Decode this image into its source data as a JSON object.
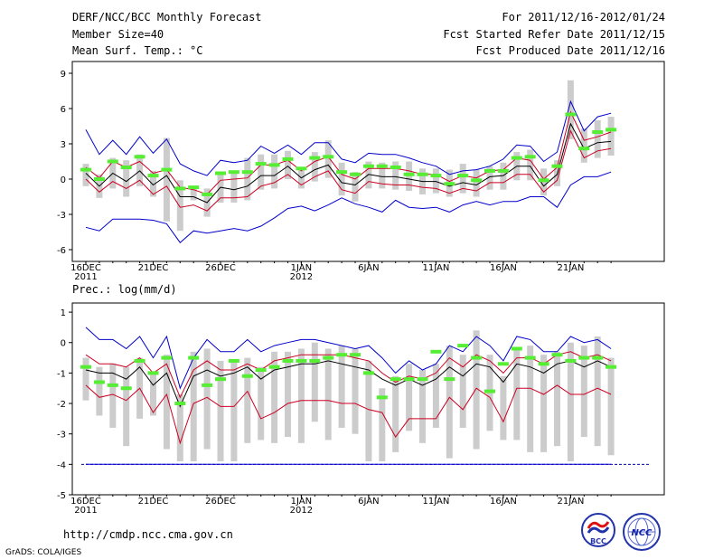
{
  "header": {
    "title": "DERF/NCC/BCC Monthly Forecast",
    "member_size": "Member Size=40",
    "variable": "Mean Surf. Temp.: °C",
    "period": "For 2011/12/16-2012/01/24",
    "started": "Fcst Started Refer Date 2011/12/15",
    "produced": "Fcst Produced Date 2011/12/16"
  },
  "footer": {
    "url": "http://cmdp.ncc.cma.gov.cn",
    "credit": "GrADS: COLA/IGES",
    "logo_bcc": "BCC",
    "logo_ncc": "NCC"
  },
  "colors": {
    "envelope": "#0000cc",
    "spread": "#cc0022",
    "mean": "#000000",
    "box": "#cccccc",
    "obs": "#55ee33",
    "ref": "#0000aa"
  },
  "chart_data": [
    {
      "type": "line",
      "title": "Mean Surf. Temp.: °C",
      "xlabel": "",
      "ylabel": "",
      "ylim": [
        -7,
        10
      ],
      "yticks": [
        -6,
        -3,
        0,
        3,
        6,
        9
      ],
      "xticks": [
        {
          "day": 0,
          "label": "16DEC",
          "sub": "2011"
        },
        {
          "day": 5,
          "label": "21DEC",
          "sub": ""
        },
        {
          "day": 10,
          "label": "26DEC",
          "sub": ""
        },
        {
          "day": 16,
          "label": "1JAN",
          "sub": "2012"
        },
        {
          "day": 21,
          "label": "6JAN",
          "sub": ""
        },
        {
          "day": 26,
          "label": "11JAN",
          "sub": ""
        },
        {
          "day": 31,
          "label": "16JAN",
          "sub": ""
        },
        {
          "day": 36,
          "label": "21JAN",
          "sub": ""
        }
      ],
      "x": [
        0,
        1,
        2,
        3,
        4,
        5,
        6,
        7,
        8,
        9,
        10,
        11,
        12,
        13,
        14,
        15,
        16,
        17,
        18,
        19,
        20,
        21,
        22,
        23,
        24,
        25,
        26,
        27,
        28,
        29,
        30,
        31,
        32,
        33,
        34,
        35,
        36,
        37,
        38,
        39
      ],
      "series": [
        {
          "name": "max",
          "values": [
            4.2,
            2.1,
            3.3,
            2.1,
            3.6,
            2.2,
            3.4,
            1.3,
            0.7,
            0.3,
            1.6,
            1.4,
            1.6,
            2.8,
            2.2,
            2.9,
            2.1,
            3.1,
            3.1,
            1.7,
            1.4,
            2.2,
            2.1,
            2.1,
            1.8,
            1.4,
            1.1,
            0.4,
            0.7,
            0.8,
            1.1,
            1.7,
            2.9,
            2.8,
            1.5,
            2.3,
            6.6,
            4.1,
            5.3,
            5.6
          ]
        },
        {
          "name": "upper",
          "values": [
            1.0,
            0.1,
            1.5,
            1.0,
            1.5,
            0.5,
            0.8,
            -0.7,
            -0.9,
            -1.3,
            -0.1,
            0.0,
            0.1,
            1.2,
            1.2,
            1.6,
            0.7,
            1.5,
            1.9,
            0.4,
            0.0,
            0.9,
            0.9,
            0.9,
            0.7,
            0.4,
            0.4,
            -0.2,
            0.3,
            0.1,
            0.7,
            0.8,
            1.8,
            1.6,
            0.0,
            1.0,
            5.7,
            3.3,
            3.6,
            4.0
          ]
        },
        {
          "name": "mean",
          "values": [
            0.5,
            -0.6,
            0.5,
            -0.2,
            0.7,
            -0.5,
            0.3,
            -1.5,
            -1.5,
            -2.0,
            -0.7,
            -0.9,
            -0.6,
            0.3,
            0.3,
            1.1,
            0.1,
            0.8,
            1.2,
            -0.3,
            -0.5,
            0.4,
            0.2,
            0.2,
            0.0,
            -0.2,
            -0.2,
            -0.6,
            -0.3,
            -0.5,
            0.2,
            0.3,
            1.1,
            1.1,
            -0.6,
            0.4,
            4.7,
            2.6,
            3.1,
            3.2
          ]
        },
        {
          "name": "lower",
          "values": [
            0.0,
            -1.1,
            -0.2,
            -0.8,
            -0.1,
            -1.3,
            -0.6,
            -2.4,
            -2.2,
            -2.7,
            -1.6,
            -1.6,
            -1.5,
            -0.6,
            -0.3,
            0.4,
            -0.5,
            0.2,
            0.7,
            -0.9,
            -1.2,
            -0.2,
            -0.4,
            -0.5,
            -0.5,
            -0.7,
            -0.8,
            -1.2,
            -0.8,
            -1.0,
            -0.3,
            -0.3,
            0.4,
            0.4,
            -1.1,
            -0.1,
            4.1,
            1.8,
            2.4,
            2.6
          ]
        },
        {
          "name": "min",
          "values": [
            -4.1,
            -4.4,
            -3.4,
            -3.4,
            -3.4,
            -3.5,
            -3.8,
            -5.4,
            -4.4,
            -4.6,
            -4.4,
            -4.2,
            -4.4,
            -4.0,
            -3.3,
            -2.5,
            -2.3,
            -2.7,
            -2.2,
            -1.6,
            -2.1,
            -2.4,
            -2.8,
            -1.8,
            -2.4,
            -2.5,
            -2.4,
            -2.8,
            -2.2,
            -1.9,
            -2.2,
            -1.9,
            -1.9,
            -1.5,
            -1.5,
            -2.4,
            -0.5,
            0.2,
            0.2,
            0.6
          ]
        },
        {
          "name": "box_low",
          "values": [
            -0.6,
            -1.6,
            -0.8,
            -1.5,
            -0.6,
            -1.5,
            -3.6,
            -4.4,
            -1.8,
            -3.2,
            -2.0,
            -2.0,
            -1.8,
            -0.9,
            -0.8,
            0.0,
            -0.8,
            -0.2,
            0.1,
            -1.4,
            -1.9,
            -0.8,
            -0.8,
            -0.9,
            -1.0,
            -1.3,
            -1.2,
            -1.5,
            -1.2,
            -1.5,
            -0.9,
            -0.9,
            -0.1,
            -0.1,
            -1.4,
            -0.6,
            3.4,
            1.4,
            1.8,
            2.0
          ]
        },
        {
          "name": "box_high",
          "values": [
            1.3,
            0.4,
            1.8,
            1.6,
            2.1,
            0.7,
            3.5,
            -0.1,
            -0.6,
            -0.8,
            0.4,
            0.6,
            1.8,
            2.1,
            2.1,
            2.4,
            1.0,
            2.3,
            3.3,
            1.4,
            0.6,
            1.5,
            1.4,
            1.5,
            1.5,
            0.9,
            0.9,
            0.8,
            1.3,
            0.8,
            1.1,
            1.4,
            2.3,
            2.5,
            0.9,
            1.6,
            8.4,
            4.3,
            5.0,
            5.3
          ]
        },
        {
          "name": "observed",
          "values": [
            0.8,
            0.0,
            1.5,
            1.0,
            1.9,
            0.3,
            0.8,
            -0.8,
            -0.7,
            -1.3,
            0.5,
            0.6,
            0.6,
            1.3,
            1.2,
            1.7,
            0.9,
            1.8,
            1.9,
            0.6,
            0.4,
            1.1,
            1.1,
            1.0,
            0.4,
            0.4,
            0.3,
            -0.4,
            0.3,
            -0.1,
            0.7,
            0.7,
            1.8,
            1.9,
            -0.1,
            1.1,
            5.5,
            2.6,
            4.0,
            4.2
          ]
        }
      ]
    },
    {
      "type": "line",
      "title": "Prec.: log(mm/d)",
      "xlabel": "",
      "ylabel": "",
      "ylim": [
        -5,
        1.3
      ],
      "yticks": [
        -5,
        -4,
        -3,
        -2,
        -1,
        0,
        1
      ],
      "xticks": [
        {
          "day": 0,
          "label": "16DEC",
          "sub": "2011"
        },
        {
          "day": 5,
          "label": "21DEC",
          "sub": ""
        },
        {
          "day": 10,
          "label": "26DEC",
          "sub": ""
        },
        {
          "day": 16,
          "label": "1JAN",
          "sub": "2012"
        },
        {
          "day": 21,
          "label": "6JAN",
          "sub": ""
        },
        {
          "day": 26,
          "label": "11JAN",
          "sub": ""
        },
        {
          "day": 31,
          "label": "16JAN",
          "sub": ""
        },
        {
          "day": 36,
          "label": "21JAN",
          "sub": ""
        }
      ],
      "x": [
        0,
        1,
        2,
        3,
        4,
        5,
        6,
        7,
        8,
        9,
        10,
        11,
        12,
        13,
        14,
        15,
        16,
        17,
        18,
        19,
        20,
        21,
        22,
        23,
        24,
        25,
        26,
        27,
        28,
        29,
        30,
        31,
        32,
        33,
        34,
        35,
        36,
        37,
        38,
        39
      ],
      "reference": -4.0,
      "series": [
        {
          "name": "max",
          "values": [
            0.5,
            0.1,
            0.1,
            -0.2,
            0.2,
            -0.5,
            0.2,
            -1.5,
            -0.5,
            0.1,
            -0.3,
            -0.3,
            0.1,
            -0.3,
            -0.1,
            0.0,
            0.1,
            0.1,
            0.0,
            -0.1,
            -0.2,
            -0.1,
            -0.5,
            -1.0,
            -0.6,
            -0.9,
            -0.7,
            -0.1,
            -0.3,
            0.2,
            -0.1,
            -0.6,
            0.2,
            0.1,
            -0.3,
            -0.3,
            0.2,
            0.0,
            0.1,
            -0.2
          ]
        },
        {
          "name": "upper",
          "values": [
            -0.4,
            -0.7,
            -0.7,
            -0.8,
            -0.5,
            -1.0,
            -0.7,
            -1.8,
            -0.9,
            -0.6,
            -0.9,
            -0.9,
            -0.7,
            -0.9,
            -0.6,
            -0.5,
            -0.4,
            -0.4,
            -0.4,
            -0.4,
            -0.5,
            -0.6,
            -1.0,
            -1.3,
            -1.1,
            -1.2,
            -1.0,
            -0.5,
            -0.8,
            -0.4,
            -0.6,
            -1.0,
            -0.5,
            -0.5,
            -0.7,
            -0.4,
            -0.3,
            -0.5,
            -0.4,
            -0.6
          ]
        },
        {
          "name": "mean",
          "values": [
            -0.9,
            -1.0,
            -1.0,
            -1.2,
            -0.8,
            -1.4,
            -1.0,
            -2.1,
            -1.1,
            -0.9,
            -1.1,
            -1.0,
            -0.8,
            -1.2,
            -0.9,
            -0.8,
            -0.7,
            -0.7,
            -0.6,
            -0.7,
            -0.8,
            -0.9,
            -1.2,
            -1.4,
            -1.2,
            -1.4,
            -1.2,
            -0.8,
            -1.1,
            -0.7,
            -0.8,
            -1.3,
            -0.7,
            -0.8,
            -1.0,
            -0.7,
            -0.6,
            -0.8,
            -0.6,
            -0.8
          ]
        },
        {
          "name": "lower",
          "values": [
            -1.4,
            -1.8,
            -1.7,
            -1.9,
            -1.5,
            -2.3,
            -1.7,
            -3.3,
            -2.0,
            -1.8,
            -2.1,
            -2.1,
            -1.6,
            -2.5,
            -2.3,
            -2.0,
            -1.9,
            -1.9,
            -1.9,
            -2.0,
            -2.0,
            -2.2,
            -2.3,
            -3.1,
            -2.5,
            -2.5,
            -2.5,
            -1.8,
            -2.2,
            -1.5,
            -1.8,
            -2.6,
            -1.5,
            -1.5,
            -1.7,
            -1.4,
            -1.7,
            -1.7,
            -1.5,
            -1.7
          ]
        },
        {
          "name": "min",
          "values": [
            -4.0,
            -4.0,
            -4.0,
            -4.0,
            -4.0,
            -4.0,
            -4.0,
            -4.0,
            -4.0,
            -4.0,
            -4.0,
            -4.0,
            -4.0,
            -4.0,
            -4.0,
            -4.0,
            -4.0,
            -4.0,
            -4.0,
            -4.0,
            -4.0,
            -4.0,
            -4.0,
            -4.0,
            -4.0,
            -4.0,
            -4.0,
            -4.0,
            -4.0,
            -4.0,
            -4.0,
            -4.0,
            -4.0,
            -4.0,
            -4.0,
            -4.0,
            -4.0,
            -4.0,
            -4.0,
            -4.0
          ]
        },
        {
          "name": "box_low",
          "values": [
            -1.9,
            -2.4,
            -2.8,
            -3.4,
            -2.5,
            -2.4,
            -3.5,
            -3.9,
            -3.9,
            -3.5,
            -3.9,
            -3.9,
            -3.3,
            -3.2,
            -3.3,
            -3.1,
            -3.3,
            -2.6,
            -3.2,
            -2.8,
            -3.0,
            -3.9,
            -3.9,
            -3.6,
            -2.9,
            -3.3,
            -2.8,
            -3.8,
            -2.8,
            -3.5,
            -2.9,
            -3.2,
            -3.2,
            -3.6,
            -3.6,
            -3.4,
            -3.9,
            -3.1,
            -3.4,
            -3.7
          ]
        },
        {
          "name": "box_high",
          "values": [
            -0.5,
            -0.8,
            -0.7,
            -0.8,
            -0.5,
            -1.0,
            -0.4,
            -1.7,
            -0.3,
            -0.2,
            -0.6,
            -0.6,
            -0.5,
            -0.8,
            -0.3,
            -0.3,
            -0.2,
            0.0,
            -0.2,
            -0.1,
            -0.2,
            -0.6,
            -1.5,
            -1.1,
            -0.7,
            -0.9,
            -0.7,
            -0.1,
            -0.4,
            0.4,
            -0.4,
            -1.1,
            -0.2,
            -0.1,
            -0.4,
            -0.3,
            0.0,
            -0.1,
            0.2,
            -0.5
          ]
        },
        {
          "name": "observed",
          "values": [
            -0.8,
            -1.3,
            -1.4,
            -1.5,
            -0.6,
            -1.0,
            -0.5,
            -2.0,
            -0.5,
            -1.4,
            -1.2,
            -0.6,
            -1.1,
            -0.9,
            -0.8,
            -0.6,
            -0.6,
            -0.6,
            -0.5,
            -0.4,
            -0.4,
            -1.0,
            -1.8,
            -1.2,
            -1.2,
            -1.2,
            -0.3,
            -1.2,
            -0.1,
            -0.5,
            -1.6,
            -0.7,
            -0.2,
            -0.5,
            -0.7,
            -0.4,
            -0.6,
            -0.5,
            -0.5,
            -0.8
          ]
        }
      ]
    }
  ]
}
